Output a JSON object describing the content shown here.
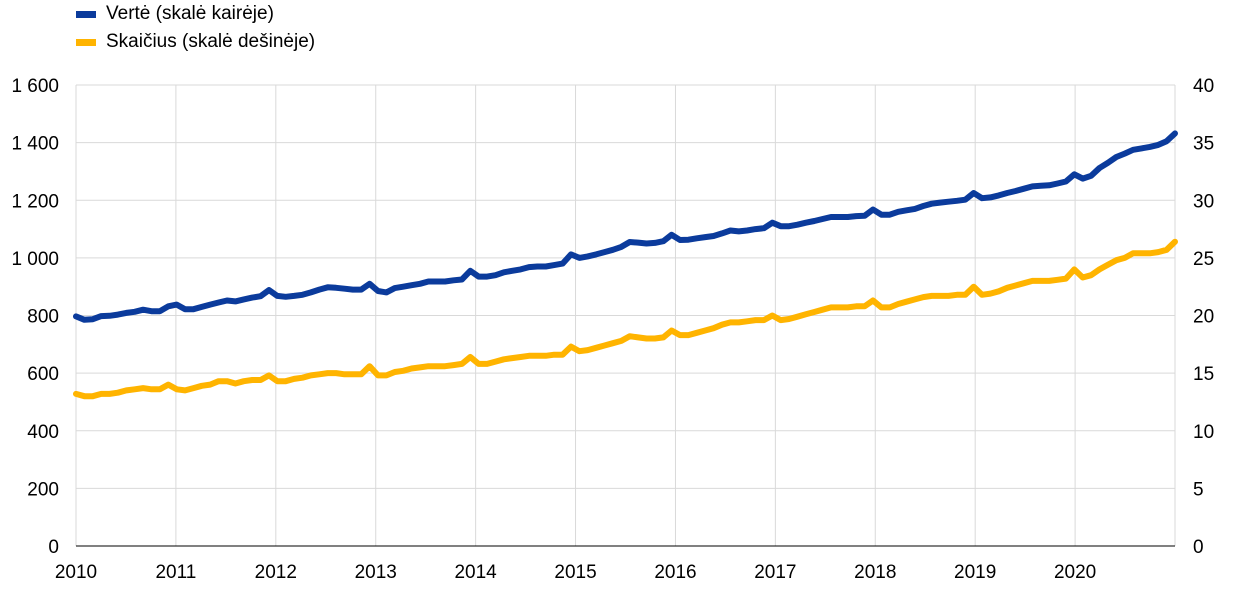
{
  "chart_data": {
    "type": "line",
    "title": "",
    "xlabel": "",
    "ylabel_left": "",
    "ylabel_right": "",
    "legend_position": "top-left",
    "grid": true,
    "x_ticks": [
      "2010",
      "2011",
      "2012",
      "2013",
      "2014",
      "2015",
      "2016",
      "2017",
      "2018",
      "2019",
      "2020"
    ],
    "y_left": {
      "lim": [
        0,
        1600
      ],
      "ticks": [
        0,
        200,
        400,
        600,
        800,
        1000,
        1200,
        1400,
        1600
      ],
      "tick_labels": [
        "0",
        "200",
        "400",
        "600",
        "800",
        "1 000",
        "1 200",
        "1 400",
        "1 600"
      ]
    },
    "y_right": {
      "lim": [
        0,
        40
      ],
      "ticks": [
        0,
        5,
        10,
        15,
        20,
        25,
        30,
        35,
        40
      ],
      "tick_labels": [
        "0",
        "5",
        "10",
        "15",
        "20",
        "25",
        "30",
        "35",
        "40"
      ]
    },
    "x_range": [
      "2010-01",
      "2020-12"
    ],
    "frequency": "monthly",
    "series": [
      {
        "name": "Vertė (skalė kairėje)",
        "axis": "left",
        "color": "#0b3b9c",
        "values": [
          797,
          785,
          787,
          798,
          799,
          803,
          809,
          813,
          820,
          815,
          815,
          832,
          838,
          822,
          822,
          830,
          838,
          845,
          852,
          849,
          856,
          862,
          867,
          888,
          868,
          865,
          868,
          872,
          880,
          890,
          898,
          896,
          893,
          890,
          890,
          910,
          885,
          880,
          895,
          900,
          905,
          910,
          918,
          918,
          918,
          922,
          925,
          955,
          935,
          935,
          940,
          950,
          955,
          960,
          968,
          970,
          970,
          975,
          980,
          1012,
          1000,
          1005,
          1012,
          1020,
          1028,
          1038,
          1055,
          1053,
          1050,
          1052,
          1058,
          1080,
          1062,
          1063,
          1068,
          1072,
          1076,
          1085,
          1095,
          1092,
          1095,
          1100,
          1103,
          1122,
          1110,
          1110,
          1115,
          1122,
          1128,
          1135,
          1142,
          1142,
          1142,
          1145,
          1146,
          1168,
          1150,
          1150,
          1160,
          1165,
          1170,
          1180,
          1188,
          1192,
          1195,
          1198,
          1202,
          1225,
          1207,
          1210,
          1217,
          1225,
          1232,
          1240,
          1248,
          1250,
          1252,
          1258,
          1265,
          1290,
          1275,
          1285,
          1312,
          1330,
          1350,
          1362,
          1375,
          1380,
          1385,
          1392,
          1405,
          1432
        ]
      },
      {
        "name": "Skaičius (skalė dešinėje)",
        "axis": "right",
        "color": "#ffb400",
        "values": [
          13.2,
          13.0,
          13.0,
          13.2,
          13.2,
          13.3,
          13.5,
          13.6,
          13.7,
          13.6,
          13.6,
          14.0,
          13.6,
          13.5,
          13.7,
          13.9,
          14.0,
          14.3,
          14.3,
          14.1,
          14.3,
          14.4,
          14.4,
          14.8,
          14.3,
          14.3,
          14.5,
          14.6,
          14.8,
          14.9,
          15.0,
          15.0,
          14.9,
          14.9,
          14.9,
          15.6,
          14.8,
          14.8,
          15.1,
          15.2,
          15.4,
          15.5,
          15.6,
          15.6,
          15.6,
          15.7,
          15.8,
          16.4,
          15.8,
          15.8,
          16.0,
          16.2,
          16.3,
          16.4,
          16.5,
          16.5,
          16.5,
          16.6,
          16.6,
          17.3,
          16.9,
          17.0,
          17.2,
          17.4,
          17.6,
          17.8,
          18.2,
          18.1,
          18.0,
          18.0,
          18.1,
          18.7,
          18.3,
          18.3,
          18.5,
          18.7,
          18.9,
          19.2,
          19.4,
          19.4,
          19.5,
          19.6,
          19.6,
          20.0,
          19.6,
          19.7,
          19.9,
          20.1,
          20.3,
          20.5,
          20.7,
          20.7,
          20.7,
          20.8,
          20.8,
          21.3,
          20.7,
          20.7,
          21.0,
          21.2,
          21.4,
          21.6,
          21.7,
          21.7,
          21.7,
          21.8,
          21.8,
          22.5,
          21.8,
          21.9,
          22.1,
          22.4,
          22.6,
          22.8,
          23.0,
          23.0,
          23.0,
          23.1,
          23.2,
          24.0,
          23.3,
          23.5,
          24.0,
          24.4,
          24.8,
          25.0,
          25.4,
          25.4,
          25.4,
          25.5,
          25.7,
          26.4
        ]
      }
    ]
  }
}
